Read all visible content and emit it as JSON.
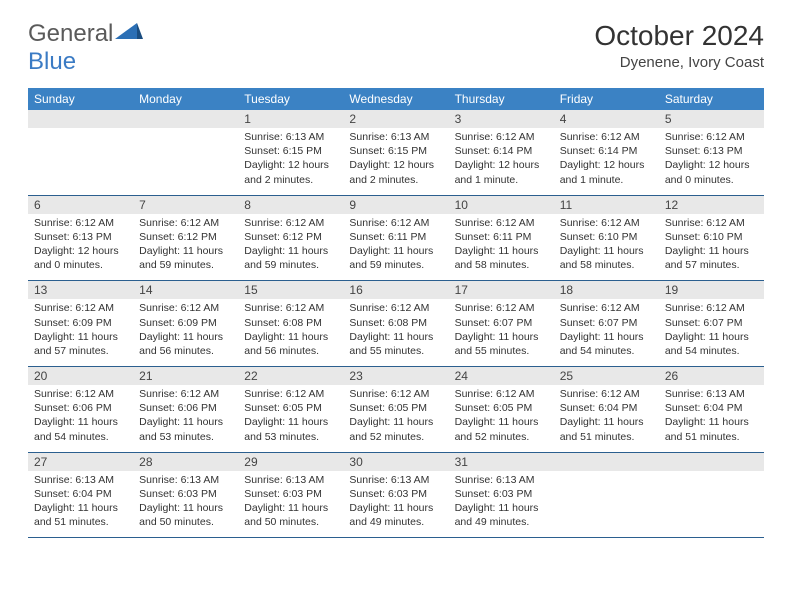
{
  "logo": {
    "text1": "General",
    "text2": "Blue"
  },
  "title": "October 2024",
  "location": "Dyenene, Ivory Coast",
  "colors": {
    "header_bg": "#3b82c4",
    "header_text": "#ffffff",
    "daynum_bg": "#e8e8e8",
    "border": "#2b5f8f",
    "logo_gray": "#5a5a5a",
    "logo_blue": "#3b7bc4"
  },
  "day_names": [
    "Sunday",
    "Monday",
    "Tuesday",
    "Wednesday",
    "Thursday",
    "Friday",
    "Saturday"
  ],
  "weeks": [
    [
      {
        "day": "",
        "sunrise": "",
        "sunset": "",
        "daylight": ""
      },
      {
        "day": "",
        "sunrise": "",
        "sunset": "",
        "daylight": ""
      },
      {
        "day": "1",
        "sunrise": "Sunrise: 6:13 AM",
        "sunset": "Sunset: 6:15 PM",
        "daylight": "Daylight: 12 hours and 2 minutes."
      },
      {
        "day": "2",
        "sunrise": "Sunrise: 6:13 AM",
        "sunset": "Sunset: 6:15 PM",
        "daylight": "Daylight: 12 hours and 2 minutes."
      },
      {
        "day": "3",
        "sunrise": "Sunrise: 6:12 AM",
        "sunset": "Sunset: 6:14 PM",
        "daylight": "Daylight: 12 hours and 1 minute."
      },
      {
        "day": "4",
        "sunrise": "Sunrise: 6:12 AM",
        "sunset": "Sunset: 6:14 PM",
        "daylight": "Daylight: 12 hours and 1 minute."
      },
      {
        "day": "5",
        "sunrise": "Sunrise: 6:12 AM",
        "sunset": "Sunset: 6:13 PM",
        "daylight": "Daylight: 12 hours and 0 minutes."
      }
    ],
    [
      {
        "day": "6",
        "sunrise": "Sunrise: 6:12 AM",
        "sunset": "Sunset: 6:13 PM",
        "daylight": "Daylight: 12 hours and 0 minutes."
      },
      {
        "day": "7",
        "sunrise": "Sunrise: 6:12 AM",
        "sunset": "Sunset: 6:12 PM",
        "daylight": "Daylight: 11 hours and 59 minutes."
      },
      {
        "day": "8",
        "sunrise": "Sunrise: 6:12 AM",
        "sunset": "Sunset: 6:12 PM",
        "daylight": "Daylight: 11 hours and 59 minutes."
      },
      {
        "day": "9",
        "sunrise": "Sunrise: 6:12 AM",
        "sunset": "Sunset: 6:11 PM",
        "daylight": "Daylight: 11 hours and 59 minutes."
      },
      {
        "day": "10",
        "sunrise": "Sunrise: 6:12 AM",
        "sunset": "Sunset: 6:11 PM",
        "daylight": "Daylight: 11 hours and 58 minutes."
      },
      {
        "day": "11",
        "sunrise": "Sunrise: 6:12 AM",
        "sunset": "Sunset: 6:10 PM",
        "daylight": "Daylight: 11 hours and 58 minutes."
      },
      {
        "day": "12",
        "sunrise": "Sunrise: 6:12 AM",
        "sunset": "Sunset: 6:10 PM",
        "daylight": "Daylight: 11 hours and 57 minutes."
      }
    ],
    [
      {
        "day": "13",
        "sunrise": "Sunrise: 6:12 AM",
        "sunset": "Sunset: 6:09 PM",
        "daylight": "Daylight: 11 hours and 57 minutes."
      },
      {
        "day": "14",
        "sunrise": "Sunrise: 6:12 AM",
        "sunset": "Sunset: 6:09 PM",
        "daylight": "Daylight: 11 hours and 56 minutes."
      },
      {
        "day": "15",
        "sunrise": "Sunrise: 6:12 AM",
        "sunset": "Sunset: 6:08 PM",
        "daylight": "Daylight: 11 hours and 56 minutes."
      },
      {
        "day": "16",
        "sunrise": "Sunrise: 6:12 AM",
        "sunset": "Sunset: 6:08 PM",
        "daylight": "Daylight: 11 hours and 55 minutes."
      },
      {
        "day": "17",
        "sunrise": "Sunrise: 6:12 AM",
        "sunset": "Sunset: 6:07 PM",
        "daylight": "Daylight: 11 hours and 55 minutes."
      },
      {
        "day": "18",
        "sunrise": "Sunrise: 6:12 AM",
        "sunset": "Sunset: 6:07 PM",
        "daylight": "Daylight: 11 hours and 54 minutes."
      },
      {
        "day": "19",
        "sunrise": "Sunrise: 6:12 AM",
        "sunset": "Sunset: 6:07 PM",
        "daylight": "Daylight: 11 hours and 54 minutes."
      }
    ],
    [
      {
        "day": "20",
        "sunrise": "Sunrise: 6:12 AM",
        "sunset": "Sunset: 6:06 PM",
        "daylight": "Daylight: 11 hours and 54 minutes."
      },
      {
        "day": "21",
        "sunrise": "Sunrise: 6:12 AM",
        "sunset": "Sunset: 6:06 PM",
        "daylight": "Daylight: 11 hours and 53 minutes."
      },
      {
        "day": "22",
        "sunrise": "Sunrise: 6:12 AM",
        "sunset": "Sunset: 6:05 PM",
        "daylight": "Daylight: 11 hours and 53 minutes."
      },
      {
        "day": "23",
        "sunrise": "Sunrise: 6:12 AM",
        "sunset": "Sunset: 6:05 PM",
        "daylight": "Daylight: 11 hours and 52 minutes."
      },
      {
        "day": "24",
        "sunrise": "Sunrise: 6:12 AM",
        "sunset": "Sunset: 6:05 PM",
        "daylight": "Daylight: 11 hours and 52 minutes."
      },
      {
        "day": "25",
        "sunrise": "Sunrise: 6:12 AM",
        "sunset": "Sunset: 6:04 PM",
        "daylight": "Daylight: 11 hours and 51 minutes."
      },
      {
        "day": "26",
        "sunrise": "Sunrise: 6:13 AM",
        "sunset": "Sunset: 6:04 PM",
        "daylight": "Daylight: 11 hours and 51 minutes."
      }
    ],
    [
      {
        "day": "27",
        "sunrise": "Sunrise: 6:13 AM",
        "sunset": "Sunset: 6:04 PM",
        "daylight": "Daylight: 11 hours and 51 minutes."
      },
      {
        "day": "28",
        "sunrise": "Sunrise: 6:13 AM",
        "sunset": "Sunset: 6:03 PM",
        "daylight": "Daylight: 11 hours and 50 minutes."
      },
      {
        "day": "29",
        "sunrise": "Sunrise: 6:13 AM",
        "sunset": "Sunset: 6:03 PM",
        "daylight": "Daylight: 11 hours and 50 minutes."
      },
      {
        "day": "30",
        "sunrise": "Sunrise: 6:13 AM",
        "sunset": "Sunset: 6:03 PM",
        "daylight": "Daylight: 11 hours and 49 minutes."
      },
      {
        "day": "31",
        "sunrise": "Sunrise: 6:13 AM",
        "sunset": "Sunset: 6:03 PM",
        "daylight": "Daylight: 11 hours and 49 minutes."
      },
      {
        "day": "",
        "sunrise": "",
        "sunset": "",
        "daylight": ""
      },
      {
        "day": "",
        "sunrise": "",
        "sunset": "",
        "daylight": ""
      }
    ]
  ]
}
